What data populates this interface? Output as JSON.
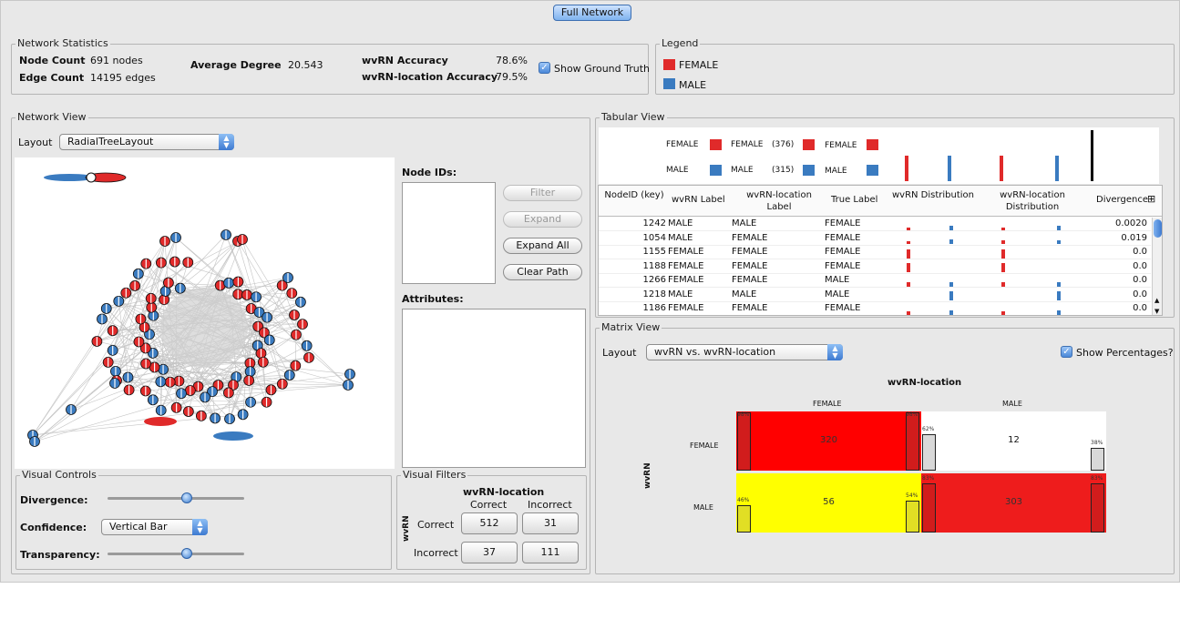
{
  "window": {
    "full_network_button": "Full Network"
  },
  "network_statistics": {
    "title": "Network Statistics",
    "node_count_label": "Node Count",
    "node_count_value": "691 nodes",
    "edge_count_label": "Edge Count",
    "edge_count_value": "14195 edges",
    "avg_degree_label": "Average Degree",
    "avg_degree_value": "20.543",
    "wvrn_acc_label": "wvRN Accuracy",
    "wvrn_acc_value": "78.6%",
    "wvrn_loc_acc_label": "wvRN-location Accuracy",
    "wvrn_loc_acc_value": "79.5%",
    "show_ground_truth_label": "Show Ground Truth",
    "show_ground_truth_checked": true
  },
  "legend": {
    "title": "Legend",
    "items": [
      {
        "label": "FEMALE",
        "color": "#e02a2a"
      },
      {
        "label": "MALE",
        "color": "#3a7bc0"
      }
    ]
  },
  "network_view": {
    "title": "Network View",
    "layout_label": "Layout",
    "layout_value": "RadialTreeLayout",
    "node_ids_label": "Node IDs:",
    "attributes_label": "Attributes:",
    "buttons": {
      "filter": "Filter",
      "expand": "Expand",
      "expand_all": "Expand All",
      "clear_path": "Clear Path"
    }
  },
  "visual_controls": {
    "title": "Visual Controls",
    "divergence_label": "Divergence:",
    "divergence_level": 0.58,
    "confidence_label": "Confidence:",
    "confidence_value": "Vertical Bar",
    "transparency_label": "Transparency:",
    "transparency_level": 0.58
  },
  "visual_filters": {
    "title": "Visual Filters",
    "col_header": "wvRN-location",
    "row_header": "wvRN",
    "col_correct": "Correct",
    "col_incorrect": "Incorrect",
    "row_correct": "Correct",
    "row_incorrect": "Incorrect",
    "values": [
      [
        "512",
        "31"
      ],
      [
        "37",
        "111"
      ]
    ]
  },
  "tabular_view": {
    "title": "Tabular View",
    "summary": {
      "female_label": "FEMALE",
      "male_label": "MALE",
      "female_count": "(376)",
      "male_count": "(315)"
    },
    "columns": [
      "NodeID (key)",
      "wvRN Label",
      "wvRN-location Label",
      "True Label",
      "wvRN Distribution",
      "wvRN-location Distribution",
      "Divergence"
    ],
    "rows": [
      {
        "id": "1242",
        "wvrn": "MALE",
        "loc": "MALE",
        "truth": "FEMALE",
        "div": "0.0020",
        "wvrn_f": 0.25,
        "wvrn_m": 0.35,
        "loc_f": 0.2,
        "loc_m": 0.35
      },
      {
        "id": "1054",
        "wvrn": "MALE",
        "loc": "FEMALE",
        "truth": "FEMALE",
        "div": "0.019",
        "wvrn_f": 0.3,
        "wvrn_m": 0.45,
        "loc_f": 0.35,
        "loc_m": 0.35
      },
      {
        "id": "1155",
        "wvrn": "FEMALE",
        "loc": "FEMALE",
        "truth": "FEMALE",
        "div": "0.0",
        "wvrn_f": 0.8,
        "wvrn_m": 0.0,
        "loc_f": 0.8,
        "loc_m": 0.0
      },
      {
        "id": "1188",
        "wvrn": "FEMALE",
        "loc": "FEMALE",
        "truth": "FEMALE",
        "div": "0.0",
        "wvrn_f": 0.8,
        "wvrn_m": 0.0,
        "loc_f": 0.8,
        "loc_m": 0.0
      },
      {
        "id": "1266",
        "wvrn": "FEMALE",
        "loc": "FEMALE",
        "truth": "MALE",
        "div": "0.0",
        "wvrn_f": 0.35,
        "wvrn_m": 0.35,
        "loc_f": 0.35,
        "loc_m": 0.35
      },
      {
        "id": "1218",
        "wvrn": "MALE",
        "loc": "MALE",
        "truth": "MALE",
        "div": "0.0",
        "wvrn_f": 0.0,
        "wvrn_m": 0.8,
        "loc_f": 0.0,
        "loc_m": 0.8
      },
      {
        "id": "1186",
        "wvrn": "FEMALE",
        "loc": "FEMALE",
        "truth": "FEMALE",
        "div": "0.0",
        "wvrn_f": 0.3,
        "wvrn_m": 0.4,
        "loc_f": 0.3,
        "loc_m": 0.4
      }
    ]
  },
  "matrix_view": {
    "title": "Matrix View",
    "layout_label": "Layout",
    "layout_value": "wvRN vs. wvRN-location",
    "show_percentages_label": "Show Percentages?",
    "show_percentages_checked": true,
    "col_axis": "wvRN-location",
    "row_axis": "wvRN",
    "col_labels": [
      "FEMALE",
      "MALE"
    ],
    "row_labels": [
      "FEMALE",
      "MALE"
    ],
    "cells": [
      {
        "value": "320",
        "color": "#ff0000",
        "left_pct": "98%",
        "right_pct": "98%",
        "left_fill": 0.98,
        "right_fill": 0.98
      },
      {
        "value": "12",
        "color": "#ffffff",
        "left_pct": "62%",
        "right_pct": "38%",
        "left_fill": 0.62,
        "right_fill": 0.38
      },
      {
        "value": "56",
        "color": "#ffff00",
        "left_pct": "46%",
        "right_pct": "54%",
        "left_fill": 0.46,
        "right_fill": 0.54
      },
      {
        "value": "303",
        "color": "#ee1c1c",
        "left_pct": "83%",
        "right_pct": "83%",
        "left_fill": 0.83,
        "right_fill": 0.83
      }
    ]
  },
  "colors": {
    "female": "#e02a2a",
    "male": "#3a7bc0"
  }
}
